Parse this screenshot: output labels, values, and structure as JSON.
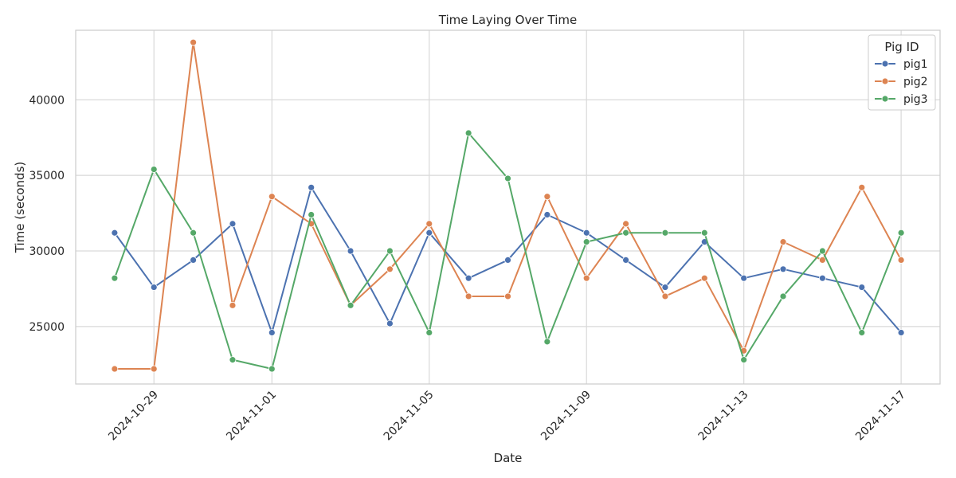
{
  "chart_data": {
    "type": "line",
    "title": "Time Laying Over Time",
    "xlabel": "Date",
    "ylabel": "Time (seconds)",
    "x": [
      "2024-10-28",
      "2024-10-29",
      "2024-10-30",
      "2024-10-31",
      "2024-11-01",
      "2024-11-02",
      "2024-11-03",
      "2024-11-04",
      "2024-11-05",
      "2024-11-06",
      "2024-11-07",
      "2024-11-08",
      "2024-11-09",
      "2024-11-10",
      "2024-11-11",
      "2024-11-12",
      "2024-11-13",
      "2024-11-14",
      "2024-11-15",
      "2024-11-16",
      "2024-11-17"
    ],
    "xticks": [
      "2024-10-29",
      "2024-11-01",
      "2024-11-05",
      "2024-11-09",
      "2024-11-13",
      "2024-11-17"
    ],
    "ylim": [
      21200,
      44600
    ],
    "yticks": [
      25000,
      30000,
      35000,
      40000
    ],
    "grid": true,
    "legend": {
      "title": "Pig ID",
      "placement": "top-right"
    },
    "series": [
      {
        "name": "pig1",
        "color": "#4c72b0",
        "values": [
          31200,
          27600,
          29400,
          31800,
          24600,
          34200,
          30000,
          25200,
          31200,
          28200,
          29400,
          32400,
          31200,
          29400,
          27600,
          30600,
          28200,
          28800,
          28200,
          27600,
          24600
        ]
      },
      {
        "name": "pig2",
        "color": "#dd8452",
        "values": [
          22200,
          22200,
          43800,
          26400,
          33600,
          31800,
          26400,
          28800,
          31800,
          27000,
          27000,
          33600,
          28200,
          31800,
          27000,
          28200,
          23400,
          30600,
          29400,
          34200,
          29400
        ]
      },
      {
        "name": "pig3",
        "color": "#55a868",
        "values": [
          28200,
          35400,
          31200,
          22800,
          22200,
          32400,
          26400,
          30000,
          24600,
          37800,
          34800,
          24000,
          30600,
          31200,
          31200,
          31200,
          22800,
          27000,
          30000,
          24600,
          31200
        ]
      }
    ]
  }
}
